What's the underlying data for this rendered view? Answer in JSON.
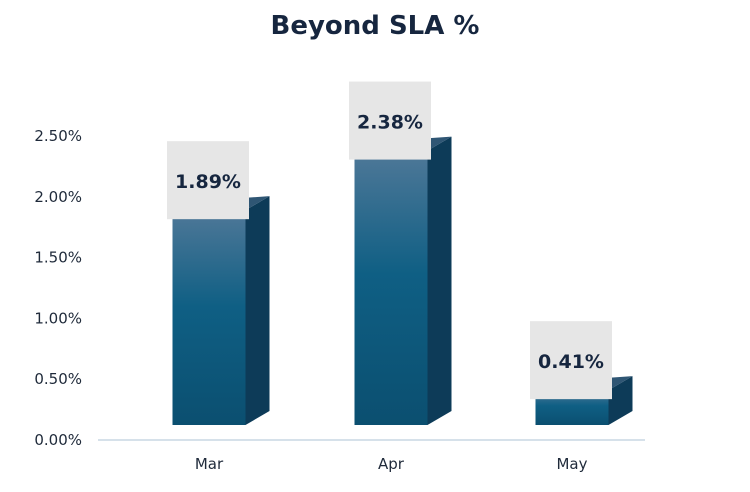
{
  "chart_data": {
    "type": "bar",
    "title": "Beyond SLA %",
    "categories": [
      "Mar",
      "Apr",
      "May"
    ],
    "values": [
      1.89,
      2.38,
      0.41
    ],
    "data_labels": [
      "1.89%",
      "2.38%",
      "0.41%"
    ],
    "y_ticks": [
      0.0,
      0.5,
      1.0,
      1.5,
      2.0,
      2.5
    ],
    "y_tick_labels": [
      "0.00%",
      "0.50%",
      "1.00%",
      "1.50%",
      "2.00%",
      "2.50%"
    ],
    "ylim": [
      0,
      2.5
    ],
    "xlabel": "",
    "ylabel": "",
    "grid": false,
    "legend": "none",
    "style": "3d-column"
  },
  "colors": {
    "bar_top_gradient": "#4f7898",
    "bar_front_mid": "#0f5f84",
    "bar_front_bottom": "#0b4f70",
    "bar_side": "#0d3b58",
    "bar_cap": "#2f5674",
    "label_box": "#e6e6e6",
    "axis_line": "#c9d7e3",
    "title": "#16263f"
  }
}
